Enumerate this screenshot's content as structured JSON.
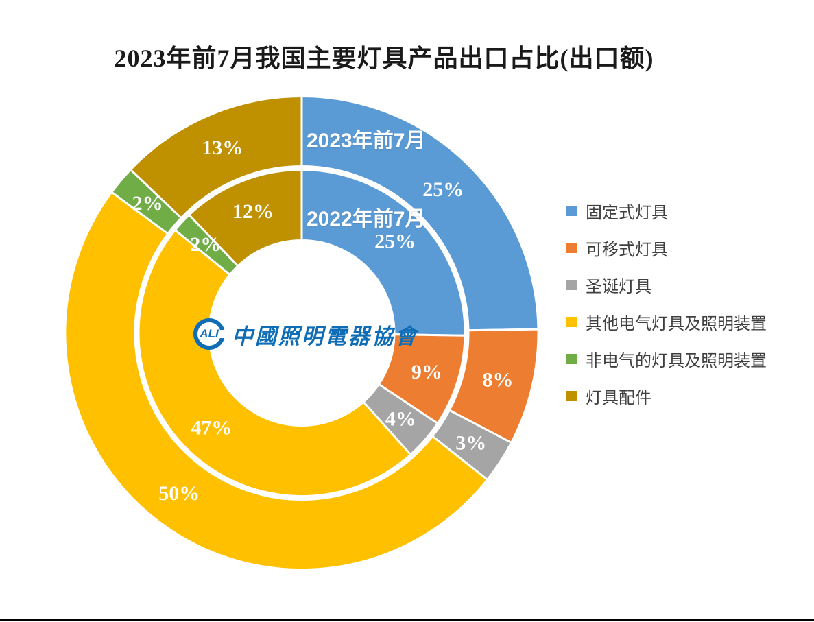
{
  "page": {
    "background": "#FFFFFF",
    "bottom_border_color": "#000000"
  },
  "chart_data": {
    "type": "donut",
    "title": "2023年前7月我国主要灯具产品出口占比(出口额)",
    "categories": [
      "固定式灯具",
      "可移式灯具",
      "圣诞灯具",
      "其他电气灯具及照明装置",
      "非电气的灯具及照明装置",
      "灯具配件"
    ],
    "colors": [
      "#5B9BD5",
      "#ED7D31",
      "#A5A5A5",
      "#FFC000",
      "#70AD47",
      "#BF9000"
    ],
    "series": [
      {
        "name": "2023年前7月",
        "ring": "outer",
        "values": [
          25,
          8,
          3,
          50,
          2,
          13
        ],
        "labels": [
          "25%",
          "8%",
          "3%",
          "50%",
          "2%",
          "13%"
        ]
      },
      {
        "name": "2022年前7月",
        "ring": "inner",
        "values": [
          25,
          9,
          4,
          47,
          2,
          12
        ],
        "labels": [
          "25%",
          "9%",
          "4%",
          "47%",
          "2%",
          "12%"
        ]
      }
    ],
    "legend_position": "right",
    "data_label_color": "#FFFFFF",
    "legend_text_color": "#3F3F3F",
    "segment_border_color": "#FFFFFF"
  },
  "center_logo": {
    "abbr": "CALI",
    "abbr_inner": "ALI",
    "text": "中國照明電器協會",
    "color": "#0F6DB5"
  }
}
